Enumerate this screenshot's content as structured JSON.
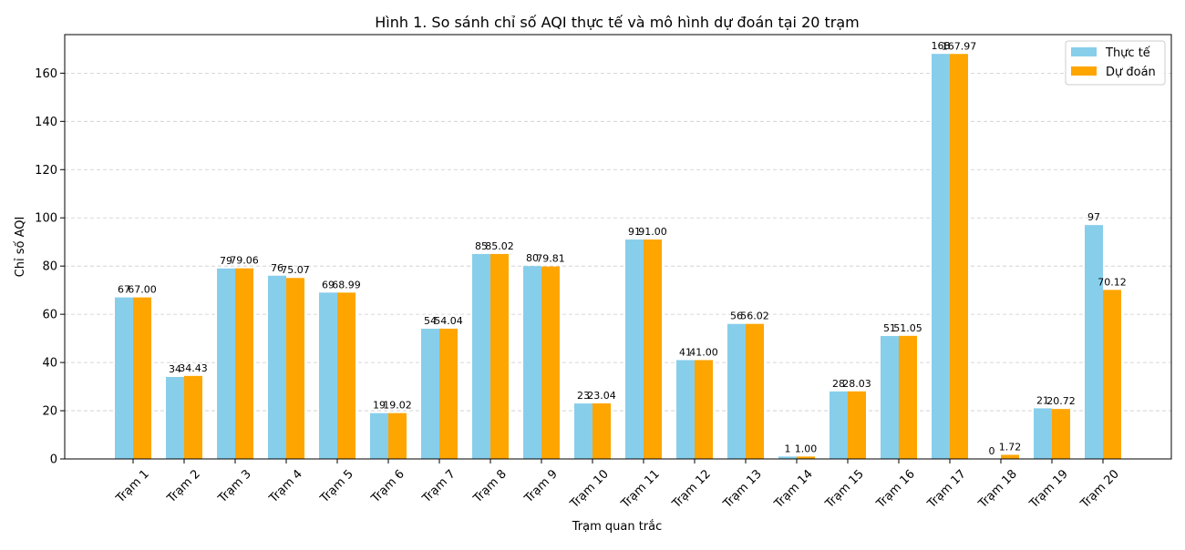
{
  "chart_data": {
    "type": "bar",
    "title": "Hình 1. So sánh chỉ số AQI thực tế và mô hình dự đoán tại 20 trạm",
    "xlabel": "Trạm quan trắc",
    "ylabel": "Chỉ số AQI",
    "ylim": [
      0,
      176
    ],
    "yticks": [
      0,
      20,
      40,
      60,
      80,
      100,
      120,
      140,
      160
    ],
    "grid": "y-dashed",
    "legend_position": "top-right",
    "categories": [
      "Trạm 1",
      "Trạm 2",
      "Trạm 3",
      "Trạm 4",
      "Trạm 5",
      "Trạm 6",
      "Trạm 7",
      "Trạm 8",
      "Trạm 9",
      "Trạm 10",
      "Trạm 11",
      "Trạm 12",
      "Trạm 13",
      "Trạm 14",
      "Trạm 15",
      "Trạm 16",
      "Trạm 17",
      "Trạm 18",
      "Trạm 19",
      "Trạm 20"
    ],
    "series": [
      {
        "name": "Thực tế",
        "color": "#87CEEB",
        "values": [
          67,
          34,
          79,
          76,
          69,
          19,
          54,
          85,
          80,
          23,
          91,
          41,
          56,
          1,
          28,
          51,
          168,
          0,
          21,
          97
        ],
        "labels": [
          "67",
          "34",
          "79",
          "76",
          "69",
          "19",
          "54",
          "85",
          "80",
          "23",
          "91",
          "41",
          "56",
          "1",
          "28",
          "51",
          "168",
          "0",
          "21",
          "97"
        ]
      },
      {
        "name": "Dự đoán",
        "color": "#FFA500",
        "values": [
          67.0,
          34.43,
          79.06,
          75.07,
          68.99,
          19.02,
          54.04,
          85.02,
          79.81,
          23.04,
          91.0,
          41.0,
          56.02,
          1.0,
          28.03,
          51.05,
          167.97,
          1.72,
          20.72,
          70.12
        ],
        "labels": [
          "67.00",
          "34.43",
          "79.06",
          "75.07",
          "68.99",
          "19.02",
          "54.04",
          "85.02",
          "79.81",
          "23.04",
          "91.00",
          "41.00",
          "56.02",
          "1.00",
          "28.03",
          "51.05",
          "167.97",
          "1.72",
          "20.72",
          "70.12"
        ]
      }
    ]
  }
}
